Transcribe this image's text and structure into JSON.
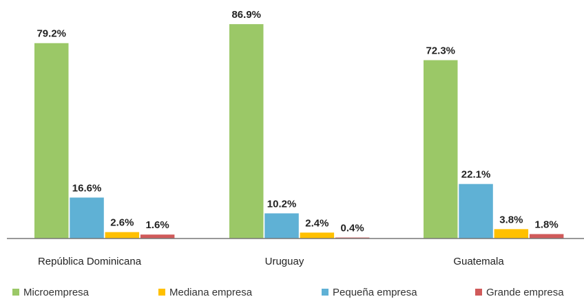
{
  "chart_data": {
    "type": "bar",
    "categories": [
      "República Dominicana",
      "Uruguay",
      "Guatemala"
    ],
    "series": [
      {
        "name": "Microempresa",
        "color": "#9bc867",
        "values": [
          79.2,
          86.9,
          72.3
        ],
        "value_labels": [
          "79.2%",
          "86.9%",
          "72.3%"
        ]
      },
      {
        "name": "Mediana empresa",
        "color": "#ffc000",
        "values": [
          2.6,
          2.4,
          3.8
        ],
        "value_labels": [
          "2.6%",
          "2.4%",
          "3.8%"
        ]
      },
      {
        "name": "Pequeña empresa",
        "color": "#5fb1d5",
        "values": [
          16.6,
          10.2,
          22.1
        ],
        "value_labels": [
          "16.6%",
          "10.2%",
          "22.1%"
        ]
      },
      {
        "name": "Grande empresa",
        "color": "#d05a5a",
        "values": [
          1.6,
          0.4,
          1.8
        ],
        "value_labels": [
          "1.6%",
          "0.4%",
          "1.8%"
        ]
      }
    ],
    "ylim": [
      0,
      90
    ]
  }
}
